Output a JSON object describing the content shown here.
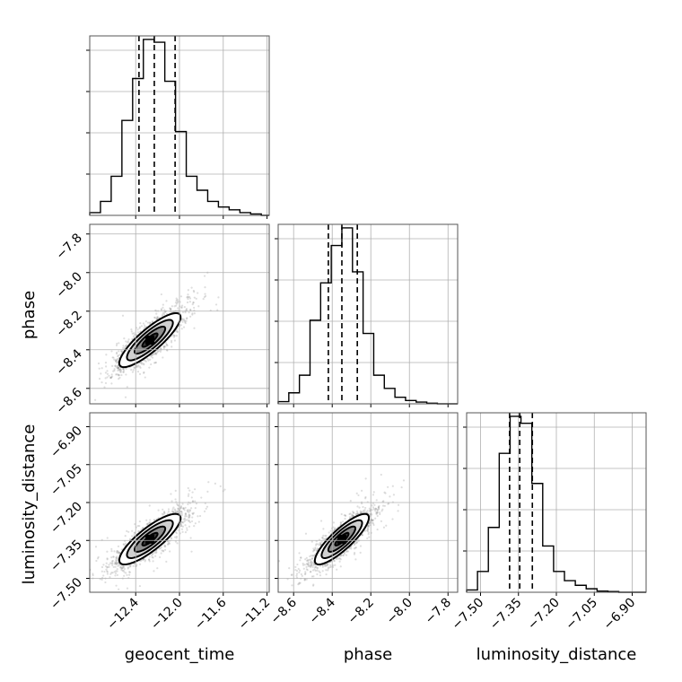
{
  "chart_data": {
    "type": "corner",
    "parameters": [
      "geocent_time",
      "phase",
      "luminosity_distance"
    ],
    "ranges": {
      "geocent_time": [
        -12.82,
        -11.18
      ],
      "phase": [
        -8.68,
        -7.75
      ],
      "luminosity_distance": [
        -7.555,
        -6.845
      ]
    },
    "ticks": {
      "geocent_time": [
        -12.4,
        -12.0,
        -11.6,
        -11.2
      ],
      "phase": [
        -8.6,
        -8.4,
        -8.2,
        -8.0,
        -7.8
      ],
      "luminosity_distance": [
        -7.5,
        -7.35,
        -7.2,
        -7.05,
        -6.9
      ]
    },
    "tick_labels": {
      "geocent_time": [
        "−12.4",
        "−12.0",
        "−11.6",
        "−11.2"
      ],
      "phase": [
        "−8.6",
        "−8.4",
        "−8.2",
        "−8.0",
        "−7.8"
      ],
      "luminosity_distance": [
        "−7.50",
        "−7.35",
        "−7.20",
        "−7.05",
        "−6.90"
      ]
    },
    "quantiles": {
      "geocent_time": [
        -12.37,
        -12.23,
        -12.04
      ],
      "phase": [
        -8.42,
        -8.35,
        -8.27
      ],
      "luminosity_distance": [
        -7.385,
        -7.345,
        -7.295
      ]
    },
    "histograms": {
      "geocent_time": {
        "edges": [
          -12.82,
          -12.722,
          -12.624,
          -12.526,
          -12.428,
          -12.33,
          -12.232,
          -12.134,
          -12.036,
          -11.938,
          -11.84,
          -11.742,
          -11.644,
          -11.546,
          -11.448,
          -11.35,
          -11.252,
          -11.18
        ],
        "counts": [
          1,
          5,
          14,
          34,
          49,
          63,
          62,
          48,
          30,
          14,
          9,
          5,
          3,
          2,
          1,
          0.5,
          0
        ]
      },
      "phase": {
        "edges": [
          -8.68,
          -8.625,
          -8.57,
          -8.515,
          -8.46,
          -8.405,
          -8.35,
          -8.295,
          -8.24,
          -8.185,
          -8.13,
          -8.075,
          -8.02,
          -7.965,
          -7.91,
          -7.855,
          -7.8,
          -7.75
        ],
        "counts": [
          1,
          5,
          13,
          38,
          55,
          72,
          80,
          60,
          32,
          13,
          7,
          3,
          1.5,
          0.8,
          0.3,
          0,
          0
        ]
      },
      "luminosity_distance": {
        "edges": [
          -7.555,
          -7.512,
          -7.469,
          -7.426,
          -7.383,
          -7.34,
          -7.297,
          -7.254,
          -7.211,
          -7.168,
          -7.125,
          -7.082,
          -7.039,
          -6.996,
          -6.953,
          -6.91,
          -6.867,
          -6.845
        ],
        "counts": [
          1,
          9,
          28,
          60,
          76,
          73,
          47,
          20,
          9,
          5,
          3,
          1.5,
          0.5,
          0.3,
          0,
          0,
          0
        ]
      }
    },
    "joint": {
      "phase_vs_geocent_time": {
        "center": [
          -12.27,
          -8.35
        ],
        "sd": [
          0.14,
          0.07
        ],
        "rho": 0.85
      },
      "luminosity_distance_vs_geocent_time": {
        "center": [
          -12.27,
          -7.345
        ],
        "sd": [
          0.14,
          0.05
        ],
        "rho": 0.83
      },
      "luminosity_distance_vs_phase": {
        "center": [
          -8.35,
          -7.345
        ],
        "sd": [
          0.07,
          0.05
        ],
        "rho": 0.85
      }
    },
    "contour_levels_sigma": [
      0.5,
      1.0,
      1.5,
      2.0
    ],
    "grid": true
  }
}
